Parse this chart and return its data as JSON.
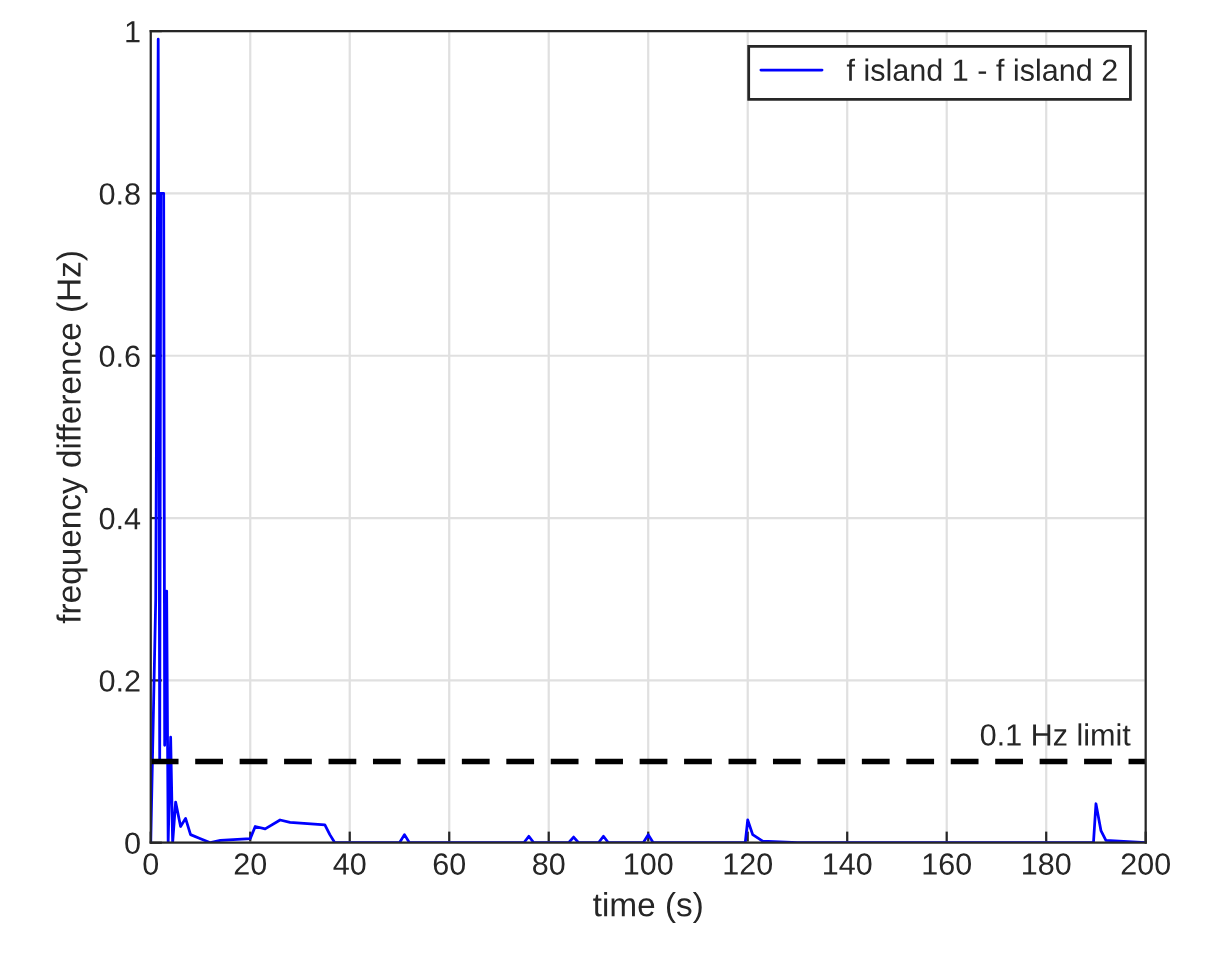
{
  "chart_data": {
    "type": "line",
    "xlabel": "time (s)",
    "ylabel": "frequency difference (Hz)",
    "x": [
      0,
      1.0,
      1.5,
      1.8,
      2.0,
      2.6,
      2.8,
      3.2,
      3.5,
      4.0,
      4.4,
      5,
      6,
      7,
      8,
      10,
      12,
      14,
      20,
      21,
      23,
      26,
      28,
      35,
      36,
      37,
      40,
      50,
      51,
      52,
      75,
      76,
      77,
      84,
      85,
      86,
      90,
      91,
      92,
      99,
      100,
      101,
      119.5,
      120,
      121,
      123,
      130,
      189.5,
      190,
      191,
      192,
      200
    ],
    "series": [
      {
        "name": "f island 1 - f island 2",
        "color": "#0000ff",
        "values": [
          0,
          0.3,
          0.99,
          0.1,
          0.8,
          0.8,
          0.12,
          0.31,
          0.0,
          0.13,
          0.0,
          0.05,
          0.02,
          0.03,
          0.01,
          0.005,
          0.0,
          0.003,
          0.005,
          0.02,
          0.017,
          0.028,
          0.025,
          0.022,
          0.01,
          0,
          0,
          0,
          0.01,
          0,
          0,
          0.008,
          0,
          0,
          0.007,
          0,
          0,
          0.008,
          0,
          0,
          0.01,
          0,
          0,
          0.028,
          0.01,
          0.002,
          0,
          0,
          0.048,
          0.015,
          0.003,
          0
        ]
      }
    ],
    "xlim": [
      0,
      200
    ],
    "xticks": [
      0,
      20,
      40,
      60,
      80,
      100,
      120,
      140,
      160,
      180,
      200
    ],
    "ylim": [
      0,
      1
    ],
    "yticks": [
      0,
      0.2,
      0.4,
      0.6,
      0.8,
      1
    ],
    "ref_lines": [
      {
        "axis": "y",
        "value": 0.1,
        "label": "0.1 Hz limit",
        "color": "#000000",
        "line_style": "dashed"
      }
    ],
    "grid": true,
    "legend": "top right",
    "line_style": "solid",
    "marker": "none"
  }
}
